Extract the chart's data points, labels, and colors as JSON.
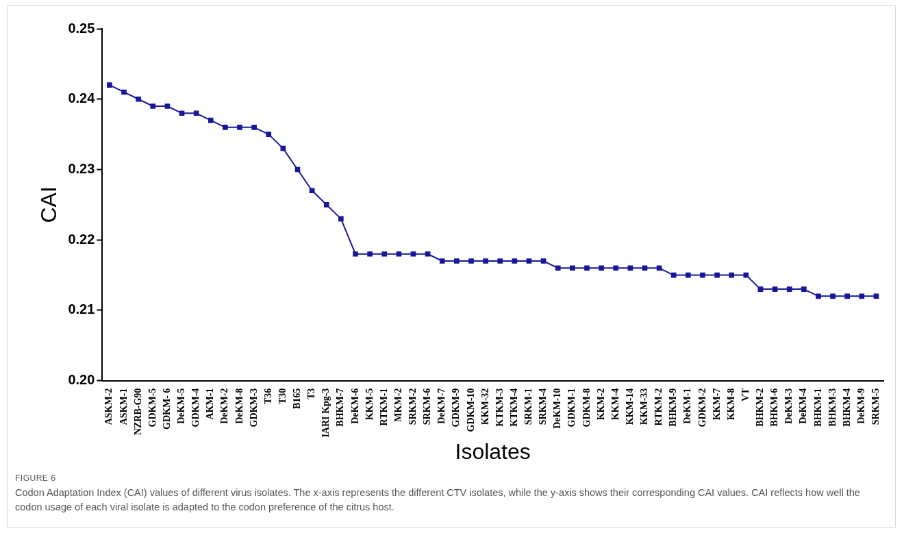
{
  "chart_data": {
    "type": "line",
    "xlabel": "Isolates",
    "ylabel": "CAI",
    "categories": [
      "ASKM-2",
      "ASKM-1",
      "NZRB-G90",
      "GDKM-5",
      "GDKM- 6",
      "DeKM-5",
      "GDKM-4",
      "AKM-1",
      "DeKM-2",
      "DeKM-8",
      "GDKM-3",
      "T36",
      "T30",
      "B165",
      "T3",
      "IARI Kpg-3",
      "BHKM-7",
      "DeKM-6",
      "KKM-5",
      "RTKM-1",
      "MKM-2",
      "SRKM-2",
      "SRKM-6",
      "DeKM-7",
      "GDKM-9",
      "GDKM-10",
      "KKM-32",
      "KTKM-3",
      "KTKM-4",
      "SRKM-1",
      "SRKM-4",
      "DeKM-10",
      "GDKM-1",
      "GDKM-8",
      "KKM-2",
      "KKM-4",
      "KKM-14",
      "KKM-33",
      "RTKM-2",
      "BHKM-9",
      "DeKM-1",
      "GDKM-2",
      "KKM-7",
      "KKM-8",
      "VT",
      "BHKM-2",
      "BHKM-6",
      "DeKM-3",
      "DeKM-4",
      "BHKM-1",
      "BHKM-3",
      "BHKM-4",
      "DeKM-9",
      "SRKM-5"
    ],
    "series": [
      {
        "color": "#17179a",
        "values": [
          0.242,
          0.241,
          0.24,
          0.239,
          0.239,
          0.238,
          0.238,
          0.237,
          0.236,
          0.236,
          0.236,
          0.235,
          0.233,
          0.23,
          0.227,
          0.225,
          0.223,
          0.218,
          0.218,
          0.218,
          0.218,
          0.218,
          0.218,
          0.217,
          0.217,
          0.217,
          0.217,
          0.217,
          0.217,
          0.217,
          0.217,
          0.216,
          0.216,
          0.216,
          0.216,
          0.216,
          0.216,
          0.216,
          0.216,
          0.215,
          0.215,
          0.215,
          0.215,
          0.215,
          0.215,
          0.213,
          0.213,
          0.213,
          0.213,
          0.212,
          0.212,
          0.212,
          0.212,
          0.212
        ]
      }
    ],
    "ylim": [
      0.2,
      0.25
    ],
    "yticks": [
      {
        "value": 0.2,
        "label": "0.20"
      },
      0.21,
      0.22,
      0.23,
      0.24,
      0.25
    ],
    "grid": false,
    "legend": false,
    "marker": "square",
    "line_style": "solid",
    "annotations": [
      "FIGURE 6",
      "Codon Adaptation Index (CAI) values of different virus isolates. The x-axis represents the different CTV isolates, while the y-axis shows their corresponding CAI values. CAI reflects how well the codon usage of each viral isolate is adapted to the codon preference of the citrus host."
    ]
  }
}
